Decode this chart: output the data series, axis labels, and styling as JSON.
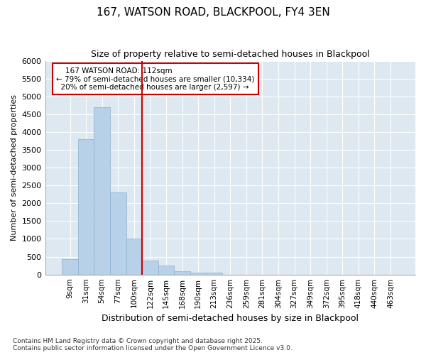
{
  "title": "167, WATSON ROAD, BLACKPOOL, FY4 3EN",
  "subtitle": "Size of property relative to semi-detached houses in Blackpool",
  "xlabel": "Distribution of semi-detached houses by size in Blackpool",
  "ylabel": "Number of semi-detached properties",
  "property_label": "167 WATSON ROAD: 112sqm",
  "smaller_pct": "79%",
  "smaller_n": "10,334",
  "larger_pct": "20%",
  "larger_n": "2,597",
  "categories": [
    "9sqm",
    "31sqm",
    "54sqm",
    "77sqm",
    "100sqm",
    "122sqm",
    "145sqm",
    "168sqm",
    "190sqm",
    "213sqm",
    "236sqm",
    "259sqm",
    "281sqm",
    "304sqm",
    "327sqm",
    "349sqm",
    "372sqm",
    "395sqm",
    "418sqm",
    "440sqm",
    "463sqm"
  ],
  "values": [
    430,
    3800,
    4700,
    2300,
    1000,
    400,
    250,
    100,
    60,
    50,
    0,
    0,
    0,
    0,
    0,
    0,
    0,
    0,
    0,
    0,
    0
  ],
  "bar_color": "#b8d0e8",
  "bar_edge_color": "#8ab0d0",
  "vline_color": "#cc0000",
  "annotation_box_color": "#cc0000",
  "plot_bg_color": "#dde8f0",
  "fig_bg_color": "#ffffff",
  "ylim": [
    0,
    6000
  ],
  "yticks": [
    0,
    500,
    1000,
    1500,
    2000,
    2500,
    3000,
    3500,
    4000,
    4500,
    5000,
    5500,
    6000
  ],
  "footer_line1": "Contains HM Land Registry data © Crown copyright and database right 2025.",
  "footer_line2": "Contains public sector information licensed under the Open Government Licence v3.0."
}
